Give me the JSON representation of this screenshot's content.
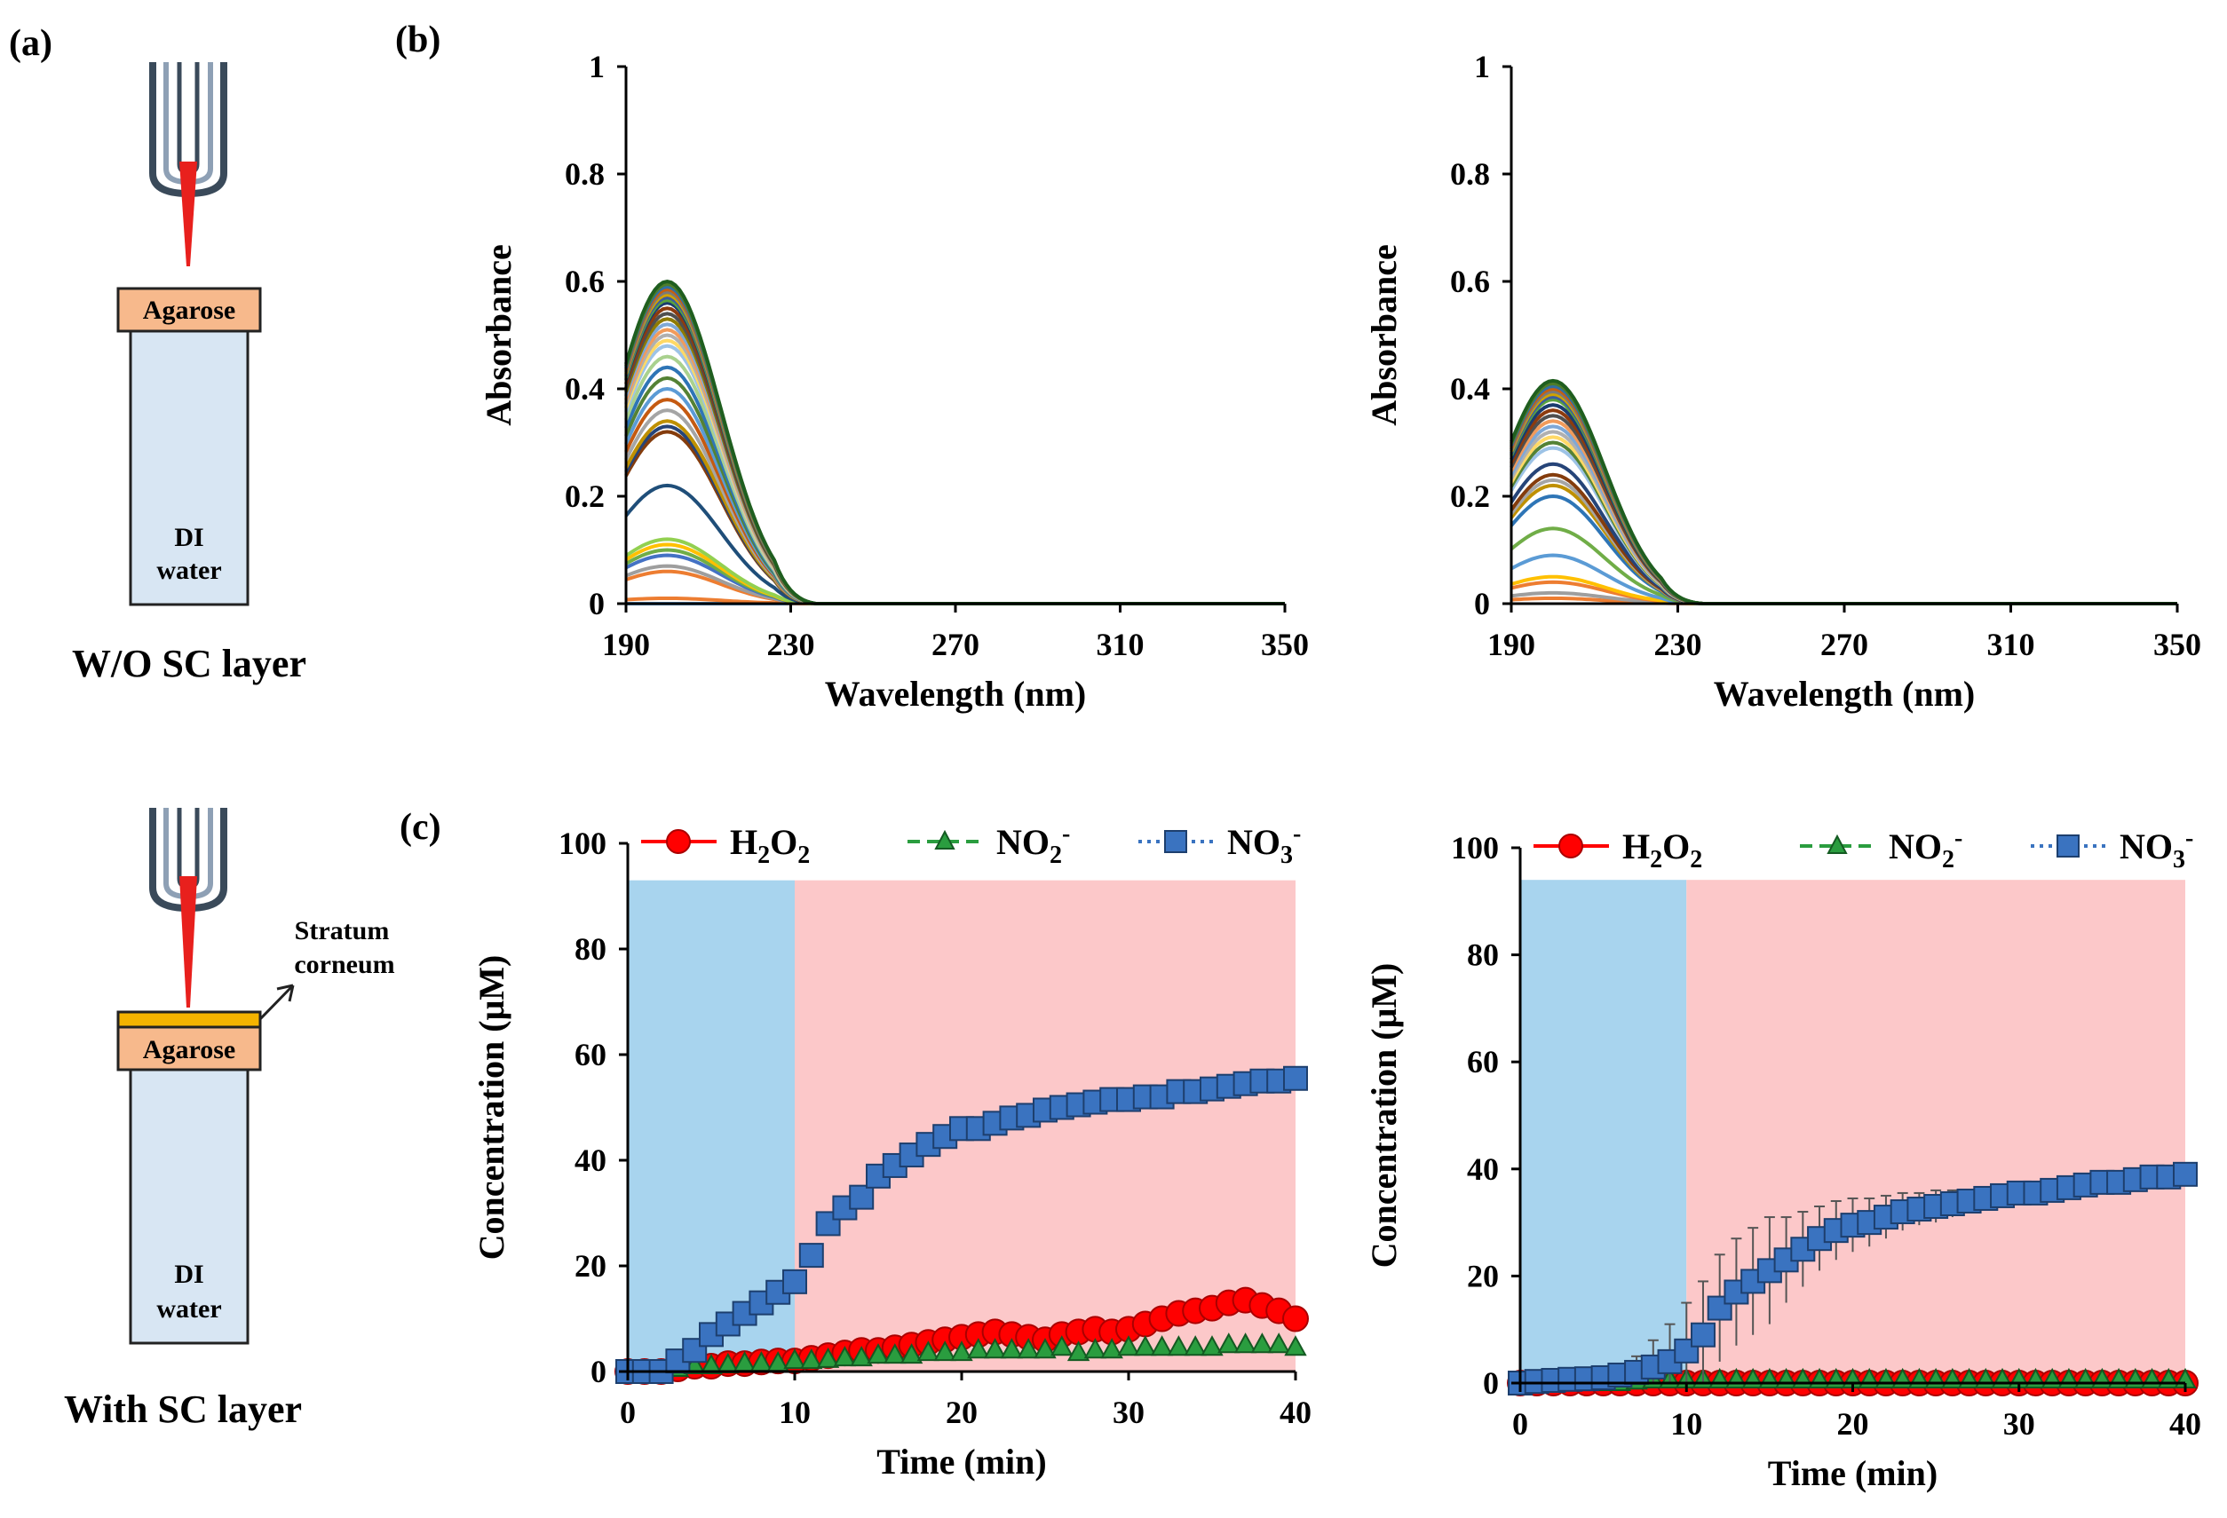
{
  "panels": {
    "a": "(a)",
    "b": "(b)",
    "c": "(c)"
  },
  "diagram": {
    "top": {
      "layer_label": "Agarose",
      "liquid_label_1": "DI",
      "liquid_label_2": "water",
      "caption": "W/O  SC layer"
    },
    "bottom": {
      "layer_label": "Agarose",
      "sc_label_1": "Stratum",
      "sc_label_2": "corneum",
      "liquid_label_1": "DI",
      "liquid_label_2": "water",
      "caption": "With SC layer"
    },
    "colors": {
      "agarose": "#f7b98c",
      "water": "#d8e6f3",
      "plasma": "#e8201d",
      "stratum": "#f4b300"
    }
  },
  "colors": {
    "h2o2": "#ff0000",
    "no2": "#2a9d3f",
    "no3": "#3a73c0",
    "blue_region": "#a8d4ee",
    "red_region": "#fcc8c9"
  },
  "chart_data": [
    {
      "id": "b-left",
      "type": "line",
      "title": "",
      "xlabel": "Wavelength  (nm)",
      "ylabel": "Absorbance",
      "xlim": [
        190,
        350
      ],
      "ylim": [
        0,
        1
      ],
      "xticks": [
        "190",
        "230",
        "270",
        "310",
        "350"
      ],
      "yticks": [
        "0",
        "0.2",
        "0.4",
        "0.6",
        "0.8",
        "1"
      ],
      "spectra": {
        "peak_nm": 200,
        "width_nm": 13,
        "cutoff_nm": 236,
        "peaks": [
          0.6,
          0.595,
          0.59,
          0.585,
          0.58,
          0.575,
          0.57,
          0.565,
          0.56,
          0.55,
          0.54,
          0.53,
          0.52,
          0.51,
          0.5,
          0.49,
          0.48,
          0.46,
          0.44,
          0.42,
          0.4,
          0.38,
          0.36,
          0.34,
          0.33,
          0.32,
          0.22,
          0.12,
          0.11,
          0.1,
          0.09,
          0.07,
          0.06,
          0.01,
          0.0
        ],
        "colors": [
          "#1f5e1f",
          "#4e7d2a",
          "#2f6ea6",
          "#c65f11",
          "#7a7a7a",
          "#d1a200",
          "#3c5d9c",
          "#5aa33e",
          "#1a3c6e",
          "#8c3b0e",
          "#4f4f4f",
          "#8f7a00",
          "#7fa8d6",
          "#f19b5b",
          "#b0b0b0",
          "#ffd966",
          "#9dc3e6",
          "#a9d18e",
          "#2e75b6",
          "#548235",
          "#5b9bd5",
          "#c55a11",
          "#a5a5a5",
          "#bf9000",
          "#264478",
          "#843c0c",
          "#1f4e79",
          "#92d050",
          "#ffc000",
          "#70ad47",
          "#4472c4",
          "#9e9e9e",
          "#ed7d31",
          "#ed7d31",
          "#5b9bd5"
        ]
      }
    },
    {
      "id": "b-right",
      "type": "line",
      "title": "",
      "xlabel": "Wavelength  (nm)",
      "ylabel": "Absorbance",
      "xlim": [
        190,
        350
      ],
      "ylim": [
        0,
        1
      ],
      "xticks": [
        "190",
        "230",
        "270",
        "310",
        "350"
      ],
      "yticks": [
        "0",
        "0.2",
        "0.4",
        "0.6",
        "0.8",
        "1"
      ],
      "spectra": {
        "peak_nm": 200,
        "width_nm": 12.5,
        "cutoff_nm": 236,
        "peaks": [
          0.415,
          0.41,
          0.405,
          0.4,
          0.395,
          0.39,
          0.385,
          0.38,
          0.37,
          0.36,
          0.35,
          0.34,
          0.33,
          0.32,
          0.31,
          0.3,
          0.29,
          0.26,
          0.24,
          0.23,
          0.22,
          0.2,
          0.14,
          0.09,
          0.05,
          0.04,
          0.02,
          0.01
        ],
        "colors": [
          "#1f5e1f",
          "#4e7d2a",
          "#2f6ea6",
          "#c65f11",
          "#7a7a7a",
          "#d1a200",
          "#3c5d9c",
          "#5aa33e",
          "#1a3c6e",
          "#8c3b0e",
          "#4f4f4f",
          "#f19b5b",
          "#7fa8d6",
          "#b0b0b0",
          "#ffd966",
          "#548235",
          "#9dc3e6",
          "#264478",
          "#843c0c",
          "#a5a5a5",
          "#bf9000",
          "#2e75b6",
          "#70ad47",
          "#5b9bd5",
          "#ffc000",
          "#ed7d31",
          "#9e9e9e",
          "#ed7d31"
        ]
      }
    },
    {
      "id": "c-left",
      "type": "scatter",
      "title": "",
      "xlabel": "Time  (min)",
      "ylabel": "Concentration  (μM)",
      "xlim": [
        0,
        40
      ],
      "ylim": [
        0,
        100
      ],
      "xticks": [
        "0",
        "10",
        "20",
        "30",
        "40"
      ],
      "yticks": [
        "0",
        "20",
        "40",
        "60",
        "80",
        "100"
      ],
      "regions": [
        {
          "x": [
            0,
            10
          ],
          "y": [
            0,
            93
          ],
          "fill": "blue"
        },
        {
          "x": [
            10,
            40
          ],
          "y": [
            0,
            93
          ],
          "fill": "red"
        }
      ],
      "legend": [
        {
          "main": "H",
          "sub": "2",
          "rest": "O",
          "sub2": "2",
          "sup": ""
        },
        {
          "main": "NO",
          "sub": "2",
          "rest": "",
          "sub2": "",
          "sup": "-"
        },
        {
          "main": "NO",
          "sub": "3",
          "rest": "",
          "sub2": "",
          "sup": "-"
        }
      ],
      "series": [
        {
          "name": "H2O2",
          "marker": "circle",
          "x": [
            0,
            1,
            2,
            3,
            4,
            5,
            6,
            7,
            8,
            9,
            10,
            11,
            12,
            13,
            14,
            15,
            16,
            17,
            18,
            19,
            20,
            21,
            22,
            23,
            24,
            25,
            26,
            27,
            28,
            29,
            30,
            31,
            32,
            33,
            34,
            35,
            36,
            37,
            38,
            39,
            40
          ],
          "y": [
            0,
            0,
            0,
            0.5,
            1,
            1,
            1.5,
            1.5,
            1.8,
            2,
            2,
            2.5,
            3,
            3.5,
            4,
            4,
            4.5,
            5,
            5.5,
            6,
            6.5,
            7,
            7.5,
            7,
            6.5,
            6,
            7,
            7.5,
            8,
            7.5,
            8,
            9,
            10,
            11,
            11.5,
            12,
            13,
            13.5,
            12.5,
            11.5,
            10
          ],
          "err": []
        },
        {
          "name": "NO2-",
          "marker": "triangle",
          "x": [
            0,
            1,
            2,
            3,
            4,
            5,
            6,
            7,
            8,
            9,
            10,
            11,
            12,
            13,
            14,
            15,
            16,
            17,
            18,
            19,
            20,
            21,
            22,
            23,
            24,
            25,
            26,
            27,
            28,
            29,
            30,
            31,
            32,
            33,
            34,
            35,
            36,
            37,
            38,
            39,
            40
          ],
          "y": [
            0,
            0,
            0,
            0.5,
            1,
            1,
            1.2,
            1.5,
            1.5,
            1.5,
            2,
            2,
            2.2,
            2.5,
            2.5,
            3,
            3,
            3,
            3.5,
            3.5,
            3.5,
            4,
            4,
            4,
            4,
            4,
            4.5,
            3.5,
            4,
            4,
            4.5,
            4.5,
            4.5,
            4.5,
            4.5,
            4.5,
            5,
            5,
            5,
            5,
            4.5
          ],
          "err": []
        },
        {
          "name": "NO3-",
          "marker": "square",
          "x": [
            0,
            1,
            2,
            3,
            4,
            5,
            6,
            7,
            8,
            9,
            10,
            11,
            12,
            13,
            14,
            15,
            16,
            17,
            18,
            19,
            20,
            21,
            22,
            23,
            24,
            25,
            26,
            27,
            28,
            29,
            30,
            31,
            32,
            33,
            34,
            35,
            36,
            37,
            38,
            39,
            40
          ],
          "y": [
            0,
            0,
            0,
            2,
            4,
            7,
            9,
            11,
            13,
            15,
            17,
            22,
            28,
            31,
            33,
            37,
            39,
            41,
            43,
            44.5,
            46,
            46,
            47,
            48,
            48.5,
            49.5,
            50,
            50.5,
            51,
            51.5,
            51.5,
            52,
            52,
            53,
            53,
            53.5,
            54,
            54.5,
            55,
            55,
            55.5
          ],
          "err": [
            0,
            0,
            0,
            0.5,
            0.8,
            1,
            1,
            1.2,
            1.2,
            1.5,
            1.5,
            1.5,
            1.5,
            1.5,
            1.5,
            1.5,
            1.5,
            1.5,
            1.5,
            1.5,
            1.5,
            1.5,
            1.5,
            1.5,
            1.5,
            1.5,
            1.5,
            1.5,
            1.5,
            1.5,
            1.5,
            1.5,
            1.5,
            1.5,
            1.5,
            1.5,
            1.5,
            1.5,
            1.5,
            1.5,
            1.5
          ]
        }
      ]
    },
    {
      "id": "c-right",
      "type": "scatter",
      "title": "",
      "xlabel": "Time  (min)",
      "ylabel": "Concentration  (μM)",
      "xlim": [
        0,
        40
      ],
      "ylim": [
        0,
        100
      ],
      "xticks": [
        "0",
        "10",
        "20",
        "30",
        "40"
      ],
      "yticks": [
        "0",
        "20",
        "40",
        "60",
        "80",
        "100"
      ],
      "regions": [
        {
          "x": [
            0,
            10
          ],
          "y": [
            0,
            94
          ],
          "fill": "blue"
        },
        {
          "x": [
            10,
            40
          ],
          "y": [
            0,
            94
          ],
          "fill": "red"
        }
      ],
      "legend": [
        {
          "main": "H",
          "sub": "2",
          "rest": "O",
          "sub2": "2",
          "sup": ""
        },
        {
          "main": "NO",
          "sub": "2",
          "rest": "",
          "sub2": "",
          "sup": "-"
        },
        {
          "main": "NO",
          "sub": "3",
          "rest": "",
          "sub2": "",
          "sup": "-"
        }
      ],
      "series": [
        {
          "name": "H2O2",
          "marker": "circle",
          "x": [
            0,
            1,
            2,
            3,
            4,
            5,
            6,
            7,
            8,
            9,
            10,
            11,
            12,
            13,
            14,
            15,
            16,
            17,
            18,
            19,
            20,
            21,
            22,
            23,
            24,
            25,
            26,
            27,
            28,
            29,
            30,
            31,
            32,
            33,
            34,
            35,
            36,
            37,
            38,
            39,
            40
          ],
          "y": [
            0,
            0,
            0,
            0,
            0,
            0,
            0,
            0,
            0,
            0,
            0,
            0,
            0,
            0,
            0,
            0,
            0,
            0,
            0,
            0,
            0,
            0,
            0,
            0,
            0,
            0,
            0,
            0,
            0,
            0,
            0,
            0,
            0,
            0,
            0,
            0,
            0,
            0,
            0,
            0,
            0
          ],
          "err": []
        },
        {
          "name": "NO2-",
          "marker": "triangle",
          "x": [
            0,
            1,
            2,
            3,
            4,
            5,
            6,
            7,
            8,
            9,
            10,
            11,
            12,
            13,
            14,
            15,
            16,
            17,
            18,
            19,
            20,
            21,
            22,
            23,
            24,
            25,
            26,
            27,
            28,
            29,
            30,
            31,
            32,
            33,
            34,
            35,
            36,
            37,
            38,
            39,
            40
          ],
          "y": [
            0,
            0,
            0,
            0,
            0,
            0,
            0,
            0.3,
            0.5,
            0.5,
            0.5,
            0.5,
            0.5,
            0.5,
            0.5,
            0.5,
            0.5,
            0.5,
            0.5,
            0.5,
            0.5,
            0.5,
            0.5,
            0.5,
            0.5,
            0.5,
            0.5,
            0.5,
            0.5,
            0.5,
            0.5,
            0.5,
            0.5,
            0.5,
            0.5,
            0.5,
            0.5,
            0.5,
            0.5,
            0.5,
            0.5
          ],
          "err": []
        },
        {
          "name": "NO3-",
          "marker": "square",
          "x": [
            0,
            1,
            2,
            3,
            4,
            5,
            6,
            7,
            8,
            9,
            10,
            11,
            12,
            13,
            14,
            15,
            16,
            17,
            18,
            19,
            20,
            21,
            22,
            23,
            24,
            25,
            26,
            27,
            28,
            29,
            30,
            31,
            32,
            33,
            34,
            35,
            36,
            37,
            38,
            39,
            40
          ],
          "y": [
            0,
            0.3,
            0.5,
            0.7,
            0.8,
            1,
            1.5,
            2,
            3,
            4,
            6,
            9,
            14,
            17,
            19,
            21,
            23,
            25,
            27,
            28.5,
            29.5,
            30,
            31,
            32,
            32.5,
            33,
            33.5,
            34,
            34.5,
            35,
            35.5,
            35.5,
            36,
            36.5,
            37,
            37.5,
            37.5,
            38,
            38.5,
            38.5,
            39
          ],
          "err": [
            0,
            0.3,
            0.5,
            0.5,
            1,
            1,
            2,
            3,
            5,
            7,
            9,
            10,
            10,
            10,
            10,
            10,
            8,
            7,
            6,
            5.5,
            5,
            4.5,
            4,
            3.5,
            3,
            3,
            2.5,
            2,
            2,
            1.8,
            1.8,
            1.5,
            1.5,
            1.5,
            1.5,
            1.5,
            1.2,
            1.2,
            1.2,
            1.2,
            1
          ]
        }
      ]
    }
  ]
}
